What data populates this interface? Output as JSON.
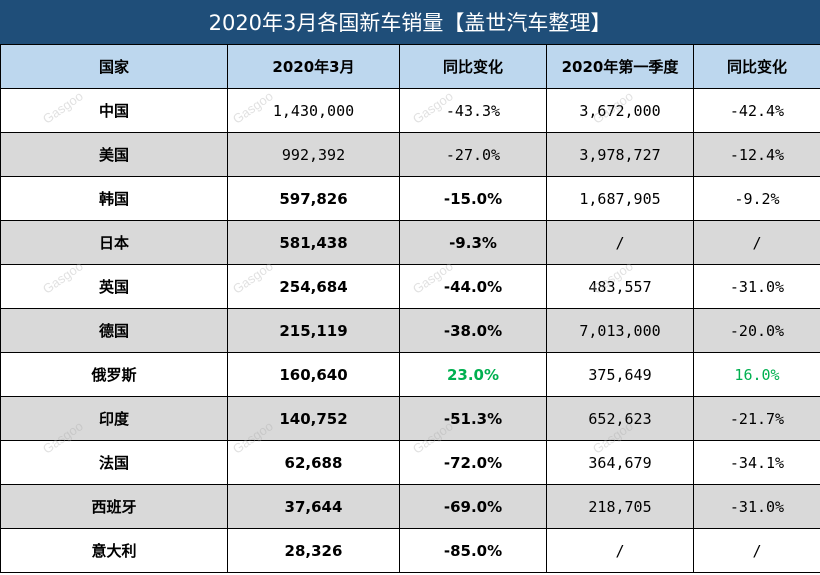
{
  "title": "2020年3月各国新车销量【盖世汽车整理】",
  "headers": [
    "国家",
    "2020年3月",
    "同比变化",
    "2020年第一季度",
    "同比变化"
  ],
  "rows": [
    {
      "country": "中国",
      "march": "1,430,000",
      "march_yoy": "-43.3%",
      "q1": "3,672,000",
      "q1_yoy": "-42.4%"
    },
    {
      "country": "美国",
      "march": "992,392",
      "march_yoy": "-27.0%",
      "q1": "3,978,727",
      "q1_yoy": "-12.4%"
    },
    {
      "country": "韩国",
      "march": "597,826",
      "march_yoy": "-15.0%",
      "q1": "1,687,905",
      "q1_yoy": "-9.2%"
    },
    {
      "country": "日本",
      "march": "581,438",
      "march_yoy": "-9.3%",
      "q1": "/",
      "q1_yoy": "/"
    },
    {
      "country": "英国",
      "march": "254,684",
      "march_yoy": "-44.0%",
      "q1": "483,557",
      "q1_yoy": "-31.0%"
    },
    {
      "country": "德国",
      "march": "215,119",
      "march_yoy": "-38.0%",
      "q1": "7,013,000",
      "q1_yoy": "-20.0%"
    },
    {
      "country": "俄罗斯",
      "march": "160,640",
      "march_yoy": "23.0%",
      "q1": "375,649",
      "q1_yoy": "16.0%"
    },
    {
      "country": "印度",
      "march": "140,752",
      "march_yoy": "-51.3%",
      "q1": "652,623",
      "q1_yoy": "-21.7%"
    },
    {
      "country": "法国",
      "march": "62,688",
      "march_yoy": "-72.0%",
      "q1": "364,679",
      "q1_yoy": "-34.1%"
    },
    {
      "country": "西班牙",
      "march": "37,644",
      "march_yoy": "-69.0%",
      "q1": "218,705",
      "q1_yoy": "-31.0%"
    },
    {
      "country": "意大利",
      "march": "28,326",
      "march_yoy": "-85.0%",
      "q1": "/",
      "q1_yoy": "/"
    }
  ],
  "watermark": "Gasgoo",
  "colors": {
    "title_bg": "#1f4e79",
    "header_bg": "#bdd7ee",
    "alt_row_bg": "#d9d9d9",
    "positive_text": "#00b050"
  }
}
